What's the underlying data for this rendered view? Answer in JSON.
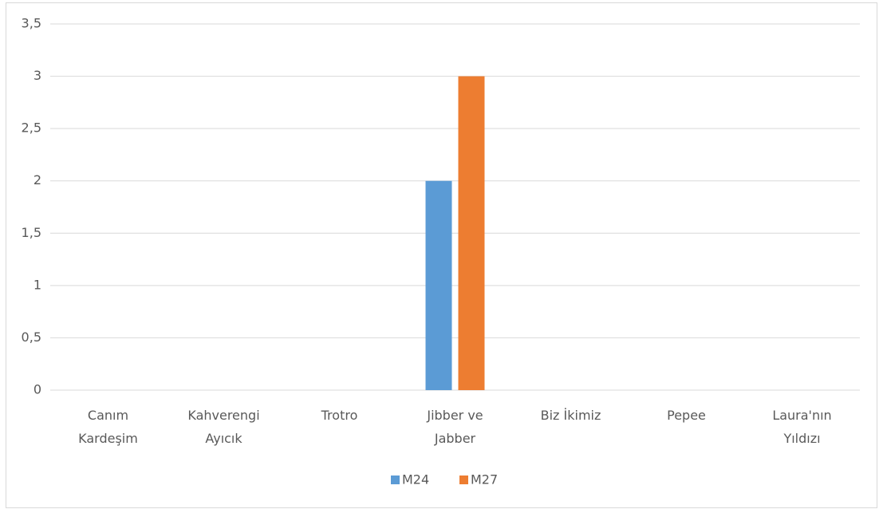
{
  "chart_data": {
    "type": "bar",
    "categories": [
      "Canım Kardeşim",
      "Kahverengi Ayıcık",
      "Trotro",
      "Jibber ve Jabber",
      "Biz İkimiz",
      "Pepee",
      "Laura'nın Yıldızı"
    ],
    "series": [
      {
        "name": "M24",
        "color": "#5b9bd5",
        "values": [
          0,
          0,
          0,
          2,
          0,
          0,
          0
        ]
      },
      {
        "name": "M27",
        "color": "#ed7d31",
        "values": [
          0,
          0,
          0,
          3,
          0,
          0,
          0
        ]
      }
    ],
    "ylim": [
      0,
      3.5
    ],
    "yticks": [
      0,
      {
        "value": 0.5,
        "label": "0,5"
      },
      1,
      {
        "value": 1.5,
        "label": "1,5"
      },
      2,
      {
        "value": 2.5,
        "label": "2,5"
      },
      3,
      {
        "value": 3.5,
        "label": "3,5"
      }
    ],
    "grid": true,
    "legend": "bottom"
  }
}
